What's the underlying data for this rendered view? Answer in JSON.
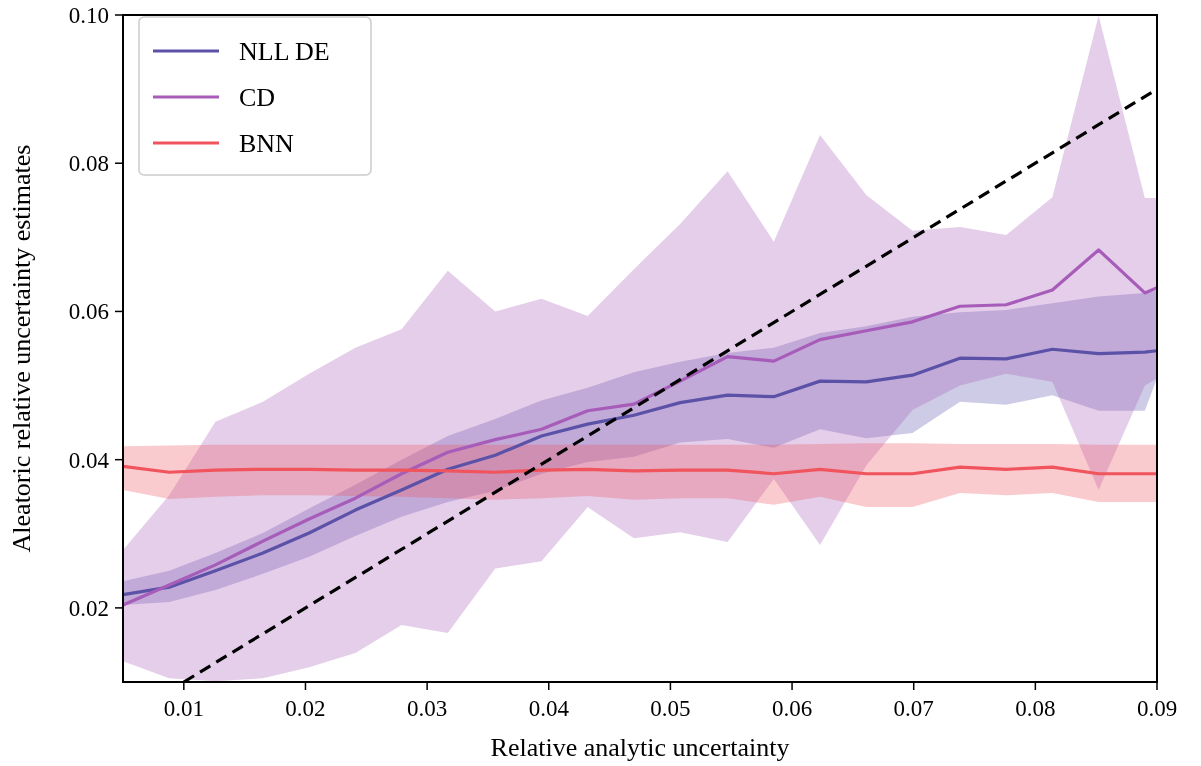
{
  "chart_data": {
    "type": "line",
    "xlabel": "Relative analytic uncertainty",
    "ylabel": "Aleatoric relative uncertainty estimates",
    "x": [
      0.005,
      0.0088,
      0.0126,
      0.0165,
      0.0203,
      0.0241,
      0.0279,
      0.0317,
      0.0356,
      0.0394,
      0.0432,
      0.047,
      0.0508,
      0.0547,
      0.0585,
      0.0623,
      0.0661,
      0.0699,
      0.0738,
      0.0776,
      0.0814,
      0.0852,
      0.089,
      0.09
    ],
    "xlim": [
      0.005,
      0.09
    ],
    "xticks": [
      0.01,
      0.02,
      0.03,
      0.04,
      0.05,
      0.06,
      0.07,
      0.08,
      0.09
    ],
    "ylim": [
      0.01,
      0.1
    ],
    "yticks": [
      0.02,
      0.04,
      0.06,
      0.08,
      {
        "value": 0.1,
        "label": "0.10"
      }
    ],
    "grid": false,
    "legend": "top left",
    "line_style": "solid",
    "marker": "none",
    "series": [
      {
        "name": "NLL DE",
        "color": "#5b52a8",
        "values": [
          0.0218,
          0.0228,
          0.025,
          0.0274,
          0.0301,
          0.0332,
          0.0359,
          0.0387,
          0.0406,
          0.0432,
          0.0448,
          0.046,
          0.0477,
          0.0487,
          0.0485,
          0.0506,
          0.0505,
          0.0514,
          0.0537,
          0.0536,
          0.0549,
          0.0543,
          0.0545,
          0.0547
        ],
        "lower": [
          0.0204,
          0.0208,
          0.0224,
          0.0246,
          0.0269,
          0.0297,
          0.0323,
          0.0343,
          0.0358,
          0.0381,
          0.0397,
          0.0404,
          0.0423,
          0.0428,
          0.0416,
          0.0441,
          0.0429,
          0.0436,
          0.0478,
          0.0474,
          0.0487,
          0.0466,
          0.0466,
          0.051
        ],
        "upper": [
          0.0236,
          0.025,
          0.0274,
          0.0301,
          0.0334,
          0.0366,
          0.04,
          0.0432,
          0.0455,
          0.048,
          0.0497,
          0.0518,
          0.0532,
          0.0544,
          0.0551,
          0.0571,
          0.058,
          0.0593,
          0.0599,
          0.0602,
          0.0611,
          0.062,
          0.0625,
          0.0628
        ]
      },
      {
        "name": "CD",
        "color": "#a65cb8",
        "values": [
          0.0204,
          0.0231,
          0.0258,
          0.029,
          0.032,
          0.0348,
          0.0381,
          0.041,
          0.0427,
          0.0441,
          0.0466,
          0.0475,
          0.0506,
          0.0539,
          0.0533,
          0.0562,
          0.0574,
          0.0586,
          0.0607,
          0.0609,
          0.0629,
          0.0683,
          0.0625,
          0.0632
        ],
        "lower": [
          0.0128,
          0.0105,
          0.0101,
          0.0105,
          0.012,
          0.0139,
          0.0177,
          0.0166,
          0.0253,
          0.0263,
          0.0336,
          0.0294,
          0.0302,
          0.0289,
          0.0374,
          0.0285,
          0.0392,
          0.0467,
          0.05,
          0.0516,
          0.0505,
          0.0359,
          0.05,
          0.051
        ],
        "upper": [
          0.0278,
          0.0352,
          0.0451,
          0.0478,
          0.0516,
          0.0551,
          0.0576,
          0.0655,
          0.06,
          0.0617,
          0.0594,
          0.0657,
          0.0718,
          0.0789,
          0.0694,
          0.0838,
          0.0757,
          0.0709,
          0.0714,
          0.0703,
          0.0754,
          0.0999,
          0.0753,
          0.0753
        ]
      },
      {
        "name": "BNN",
        "color": "#f0545c",
        "values": [
          0.0391,
          0.0383,
          0.0386,
          0.0387,
          0.0387,
          0.0386,
          0.0386,
          0.0385,
          0.0383,
          0.0386,
          0.0387,
          0.0385,
          0.0386,
          0.0386,
          0.0381,
          0.0387,
          0.0381,
          0.0381,
          0.039,
          0.0387,
          0.039,
          0.0381,
          0.0381,
          0.0381
        ],
        "lower": [
          0.0359,
          0.0347,
          0.035,
          0.0352,
          0.0352,
          0.0351,
          0.035,
          0.0348,
          0.0346,
          0.0348,
          0.0351,
          0.0346,
          0.0348,
          0.0348,
          0.0339,
          0.035,
          0.0336,
          0.0336,
          0.0355,
          0.0352,
          0.0355,
          0.0343,
          0.0343,
          0.0343
        ],
        "upper": [
          0.0418,
          0.0419,
          0.042,
          0.042,
          0.042,
          0.042,
          0.042,
          0.042,
          0.042,
          0.042,
          0.042,
          0.042,
          0.042,
          0.042,
          0.042,
          0.0421,
          0.0422,
          0.0422,
          0.0421,
          0.0421,
          0.0421,
          0.042,
          0.042,
          0.042
        ]
      },
      {
        "type": "line",
        "color": "#000000",
        "line_style": "dashed",
        "x": [
          0.01,
          0.09
        ],
        "values": [
          0.01,
          0.09
        ]
      }
    ]
  }
}
